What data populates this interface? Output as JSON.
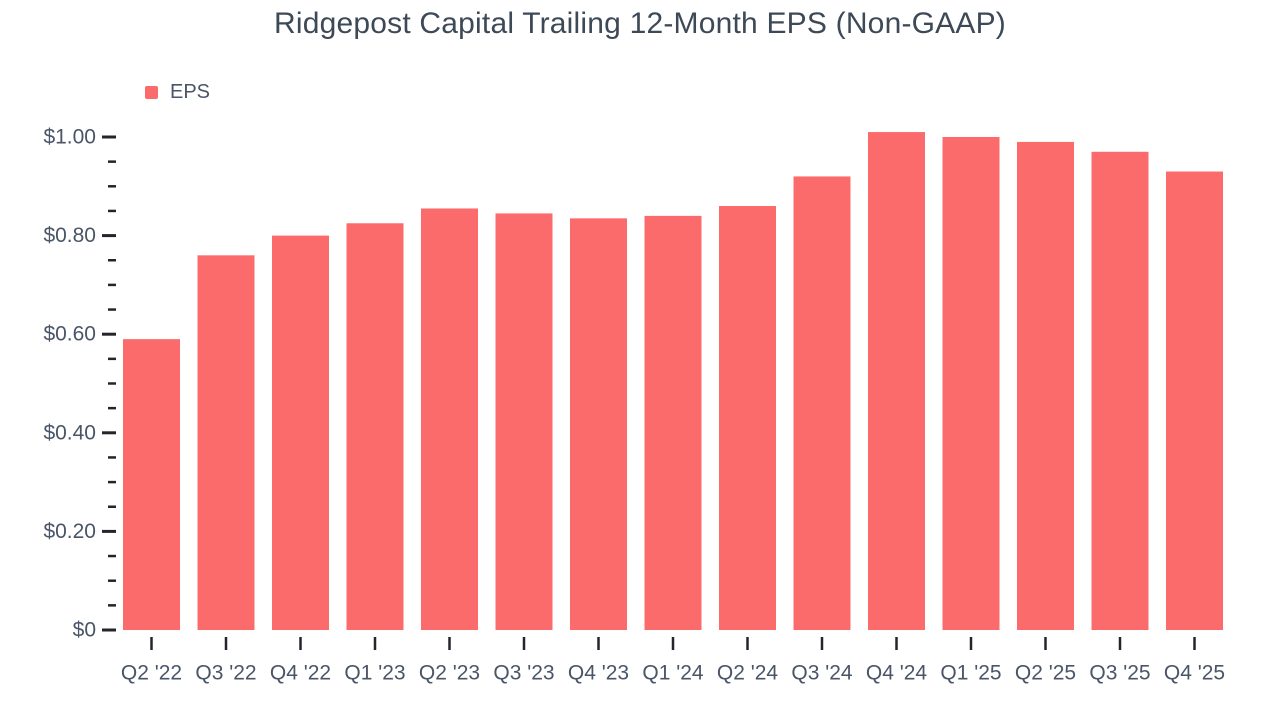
{
  "chart_data": {
    "type": "bar",
    "title": "Ridgepost Capital Trailing 12-Month EPS (Non-GAAP)",
    "legend": [
      {
        "label": "EPS",
        "color": "#FC6B6B"
      }
    ],
    "legend_position": "top-left",
    "categories": [
      "Q2 '22",
      "Q3 '22",
      "Q4 '22",
      "Q1 '23",
      "Q2 '23",
      "Q3 '23",
      "Q4 '23",
      "Q1 '24",
      "Q2 '24",
      "Q3 '24",
      "Q4 '24",
      "Q1 '25",
      "Q2 '25",
      "Q3 '25",
      "Q4 '25"
    ],
    "series": [
      {
        "name": "EPS",
        "values": [
          0.59,
          0.76,
          0.8,
          0.825,
          0.855,
          0.845,
          0.835,
          0.84,
          0.86,
          0.92,
          1.01,
          1.0,
          0.99,
          0.97,
          0.93
        ]
      }
    ],
    "xlabel": "",
    "ylabel": "",
    "ylim": [
      0,
      1.0
    ],
    "grid": "off",
    "y_axis": {
      "major_ticks": [
        {
          "value": 0.0,
          "label": "$0"
        },
        {
          "value": 0.2,
          "label": "$0.20"
        },
        {
          "value": 0.4,
          "label": "$0.40"
        },
        {
          "value": 0.6,
          "label": "$0.60"
        },
        {
          "value": 0.8,
          "label": "$0.80"
        },
        {
          "value": 1.0,
          "label": "$1.00"
        }
      ],
      "minor_step": 0.05
    },
    "colors": {
      "bar": "#FC6B6B",
      "title_text": "#3E4957",
      "axis_text": "#4A5568",
      "tick": "#22262C",
      "background": "#FFFFFF"
    }
  }
}
